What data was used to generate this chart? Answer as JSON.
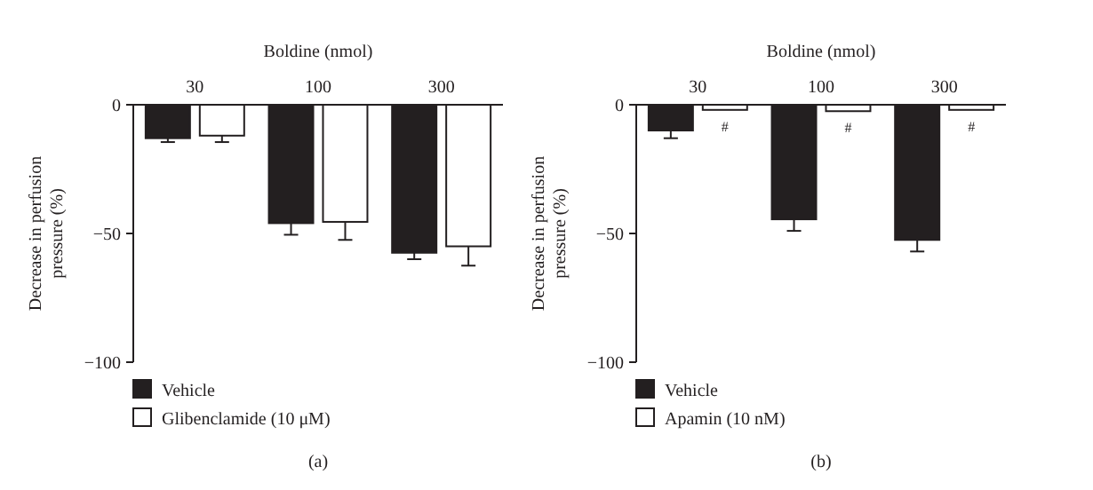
{
  "chart_data": [
    {
      "type": "bar",
      "xlabel": "Boldine (nmol)",
      "ylabel": "Decrease in perfusion pressure (%)",
      "categories": [
        "30",
        "100",
        "300"
      ],
      "series": [
        {
          "name": "Vehicle",
          "color": "#231f20",
          "values": [
            -13,
            -46,
            -57.5
          ],
          "errors": [
            1.5,
            4.5,
            2.5
          ]
        },
        {
          "name": "Glibenclamide (10 μM)",
          "color": "#ffffff",
          "values": [
            -12,
            -45.5,
            -55
          ],
          "errors": [
            2.5,
            7,
            7.5
          ]
        }
      ],
      "ylim": [
        -100,
        0
      ],
      "yticks": [
        {
          "value": 0,
          "label": "0"
        },
        {
          "value": -50,
          "label": "−50"
        },
        {
          "value": -100,
          "label": "−100"
        }
      ],
      "grid": false,
      "legend": "bottom left",
      "annotations": [
        "(a)"
      ]
    },
    {
      "type": "bar",
      "xlabel": "Boldine (nmol)",
      "ylabel": "Decrease in perfusion pressure (%)",
      "categories": [
        "30",
        "100",
        "300"
      ],
      "series": [
        {
          "name": "Vehicle",
          "color": "#231f20",
          "values": [
            -10,
            -44.5,
            -52.5
          ],
          "errors": [
            3,
            4.5,
            4.5
          ]
        },
        {
          "name": "Apamin (10 nM)",
          "color": "#ffffff",
          "values": [
            -2,
            -2.5,
            -2
          ],
          "errors": [
            null,
            null,
            null
          ]
        }
      ],
      "ylim": [
        -100,
        0
      ],
      "yticks": [
        {
          "value": 0,
          "label": "0"
        },
        {
          "value": -50,
          "label": "−50"
        },
        {
          "value": -100,
          "label": "−100"
        }
      ],
      "grid": false,
      "legend": "bottom left",
      "annotations": [
        "(b)",
        {
          "text": "#",
          "x": "30"
        },
        {
          "text": "#",
          "x": "100"
        },
        {
          "text": "#",
          "x": "300"
        }
      ]
    }
  ]
}
